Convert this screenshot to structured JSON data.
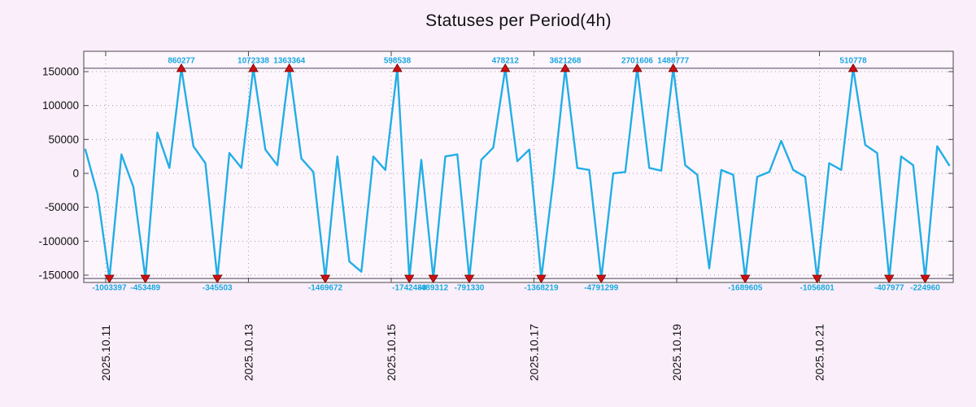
{
  "title": "Statuses per Period(4h)",
  "colors": {
    "background": "#faeefa",
    "plot_background": "#fdf6fd",
    "line": "#22aee6",
    "annotation_text": "#18a8e0",
    "marker_fill": "#cc1111",
    "marker_stroke": "#7a0000",
    "axis": "#474747",
    "clip_line": "#4a4458",
    "grid": "#ab9bab",
    "text": "#111111"
  },
  "chart_data": {
    "type": "line",
    "title": "Statuses per Period(4h)",
    "period": "4h",
    "x_axis": {
      "tick_labels": [
        "2025.10.11",
        "2025.10.13",
        "2025.10.15",
        "2025.10.17",
        "2025.10.19",
        "2025.10.21"
      ],
      "tick_steps": [
        1.69,
        13.59,
        25.49,
        37.39,
        49.29,
        61.19
      ]
    },
    "y_axis": {
      "tick_values": [
        150000,
        100000,
        50000,
        0,
        -50000,
        -100000,
        -150000
      ],
      "tick_labels": [
        "150000",
        "100000",
        "50000",
        "0",
        "-50000",
        "-100000",
        "-150000"
      ],
      "range": [
        -160800,
        177600
      ]
    },
    "clip_value": 155000,
    "grid": "dotted",
    "series": [
      {
        "name": "statuses",
        "values": [
          35000,
          -30000,
          -1003397,
          28000,
          -20000,
          -453489,
          60000,
          8000,
          860277,
          40000,
          15000,
          -345503,
          30000,
          8000,
          1072338,
          35000,
          12000,
          1363364,
          22000,
          2000,
          -1469672,
          25000,
          -130000,
          -145000,
          25000,
          5000,
          598538,
          -1742489,
          20000,
          -489312,
          25000,
          28000,
          -791330,
          20000,
          38000,
          478212,
          18000,
          35000,
          -1368219,
          -10000,
          3621268,
          8000,
          5000,
          -4791299,
          0,
          2000,
          2701606,
          8000,
          4000,
          1488777,
          12000,
          -2000,
          -140000,
          5000,
          -2000,
          -1689605,
          -5000,
          2000,
          48000,
          5000,
          -5000,
          -1056801,
          15000,
          5000,
          510778,
          42000,
          30000,
          -407977,
          25000,
          12000,
          -224960,
          40000,
          12000
        ]
      }
    ],
    "annotations": [
      {
        "index": 2,
        "text": "-1003397"
      },
      {
        "index": 5,
        "text": "-453489"
      },
      {
        "index": 8,
        "text": "860277"
      },
      {
        "index": 11,
        "text": "-345503"
      },
      {
        "index": 14,
        "text": "1072338"
      },
      {
        "index": 17,
        "text": "1363364"
      },
      {
        "index": 20,
        "text": "-1469672"
      },
      {
        "index": 26,
        "text": "598538"
      },
      {
        "index": 27,
        "text": "-1742489"
      },
      {
        "index": 29,
        "text": "-489312"
      },
      {
        "index": 32,
        "text": "-791330"
      },
      {
        "index": 35,
        "text": "478212"
      },
      {
        "index": 38,
        "text": "-1368219"
      },
      {
        "index": 40,
        "text": "3621268"
      },
      {
        "index": 43,
        "text": "-4791299"
      },
      {
        "index": 46,
        "text": "2701606"
      },
      {
        "index": 49,
        "text": "1488777"
      },
      {
        "index": 55,
        "text": "-1689605"
      },
      {
        "index": 61,
        "text": "-1056801"
      },
      {
        "index": 64,
        "text": "510778"
      },
      {
        "index": 67,
        "text": "-407977"
      },
      {
        "index": 70,
        "text": "-224960"
      }
    ]
  }
}
